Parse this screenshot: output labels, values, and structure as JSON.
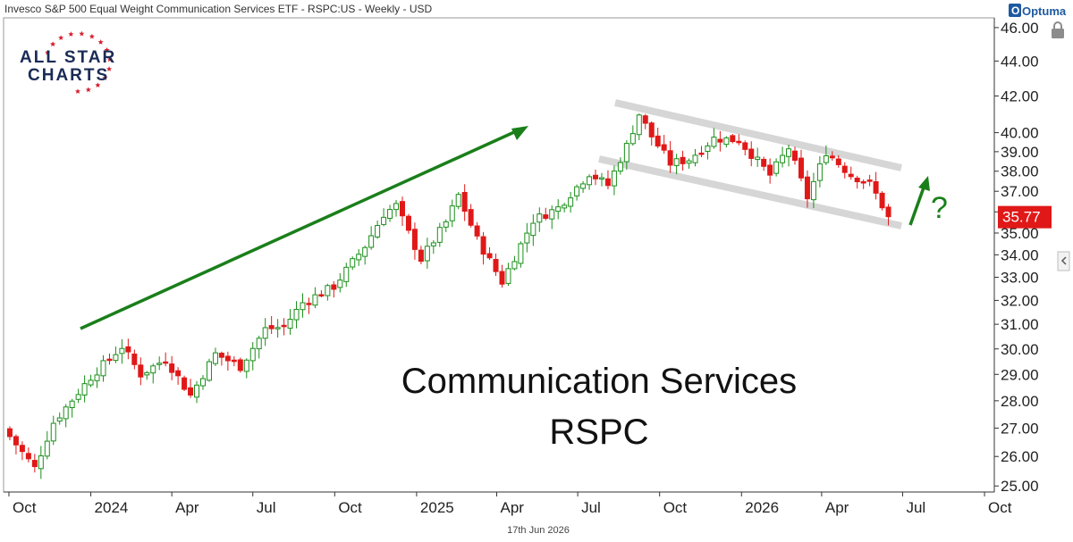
{
  "header": {
    "title": "Invesco S&P 500 Equal Weight Communication Services ETF - RSPC:US - Weekly - USD"
  },
  "branding": {
    "logo_line1": "ALL STAR",
    "logo_line2": "CHARTS",
    "optuma_label": "Optuma"
  },
  "annotations": {
    "line1": "Communication Services",
    "line2": "RSPC",
    "question": "?"
  },
  "footer": {
    "date": "17th Jun 2026"
  },
  "colors": {
    "up": "#1a8f1a",
    "down": "#e01818",
    "trend_arrow": "#1a7f1a",
    "channel": "#d9d9d9",
    "price_box": "#e01818"
  },
  "chart_data": {
    "type": "candlestick",
    "frequency": "Weekly",
    "currency": "USD",
    "ticker": "RSPC:US",
    "y_axis": {
      "ylim": [
        24.8,
        46.6
      ],
      "scale": "log",
      "ticks": [
        "25.00",
        "26.00",
        "27.00",
        "28.00",
        "29.00",
        "30.00",
        "31.00",
        "32.00",
        "33.00",
        "34.00",
        "35.00",
        "36.00",
        "37.00",
        "38.00",
        "39.00",
        "40.00",
        "42.00",
        "44.00",
        "46.00"
      ]
    },
    "x_axis": {
      "range": [
        "2023-09-25",
        "2026-10-12"
      ],
      "ticks": [
        {
          "label": "Oct",
          "date": "2023-10-01"
        },
        {
          "label": "2024",
          "date": "2024-01-01"
        },
        {
          "label": "Apr",
          "date": "2024-04-01"
        },
        {
          "label": "Jul",
          "date": "2024-07-01"
        },
        {
          "label": "Oct",
          "date": "2024-10-01"
        },
        {
          "label": "2025",
          "date": "2025-01-01"
        },
        {
          "label": "Apr",
          "date": "2025-04-01"
        },
        {
          "label": "Jul",
          "date": "2025-07-01"
        },
        {
          "label": "Oct",
          "date": "2025-10-01"
        },
        {
          "label": "2026",
          "date": "2026-01-01"
        },
        {
          "label": "Apr",
          "date": "2026-04-01"
        },
        {
          "label": "Jul",
          "date": "2026-07-01"
        },
        {
          "label": "Oct",
          "date": "2026-10-01"
        }
      ]
    },
    "last_price": "35.77",
    "key_points": [
      {
        "date": "2023-10-02",
        "close": 26.7
      },
      {
        "date": "2023-10-30",
        "close": 25.6
      },
      {
        "date": "2023-11-20",
        "close": 27.2
      },
      {
        "date": "2024-01-01",
        "close": 28.9
      },
      {
        "date": "2024-02-05",
        "close": 30.1
      },
      {
        "date": "2024-02-26",
        "close": 29.0
      },
      {
        "date": "2024-03-25",
        "close": 29.6
      },
      {
        "date": "2024-04-22",
        "close": 28.2
      },
      {
        "date": "2024-05-20",
        "close": 29.8
      },
      {
        "date": "2024-06-17",
        "close": 29.3
      },
      {
        "date": "2024-07-15",
        "close": 30.8
      },
      {
        "date": "2024-08-05",
        "close": 30.9
      },
      {
        "date": "2024-08-26",
        "close": 31.9
      },
      {
        "date": "2024-09-30",
        "close": 32.6
      },
      {
        "date": "2024-11-04",
        "close": 34.4
      },
      {
        "date": "2024-11-25",
        "close": 35.9
      },
      {
        "date": "2024-12-09",
        "close": 36.3
      },
      {
        "date": "2024-12-23",
        "close": 35.0
      },
      {
        "date": "2025-01-06",
        "close": 33.8
      },
      {
        "date": "2025-02-03",
        "close": 35.5
      },
      {
        "date": "2025-02-17",
        "close": 36.8
      },
      {
        "date": "2025-03-10",
        "close": 34.7
      },
      {
        "date": "2025-04-07",
        "close": 32.8
      },
      {
        "date": "2025-04-21",
        "close": 33.9
      },
      {
        "date": "2025-05-12",
        "close": 35.6
      },
      {
        "date": "2025-06-09",
        "close": 36.2
      },
      {
        "date": "2025-07-14",
        "close": 37.9
      },
      {
        "date": "2025-08-04",
        "close": 37.3
      },
      {
        "date": "2025-08-25",
        "close": 39.3
      },
      {
        "date": "2025-09-08",
        "close": 41.0
      },
      {
        "date": "2025-09-22",
        "close": 39.8
      },
      {
        "date": "2025-10-13",
        "close": 38.4
      },
      {
        "date": "2025-11-03",
        "close": 38.6
      },
      {
        "date": "2025-12-01",
        "close": 39.7
      },
      {
        "date": "2025-12-29",
        "close": 39.6
      },
      {
        "date": "2026-02-02",
        "close": 37.8
      },
      {
        "date": "2026-02-23",
        "close": 39.2
      },
      {
        "date": "2026-03-16",
        "close": 36.7
      },
      {
        "date": "2026-04-06",
        "close": 39.0
      },
      {
        "date": "2026-05-04",
        "close": 37.8
      },
      {
        "date": "2026-05-25",
        "close": 37.4
      },
      {
        "date": "2026-06-15",
        "close": 35.77
      }
    ]
  }
}
